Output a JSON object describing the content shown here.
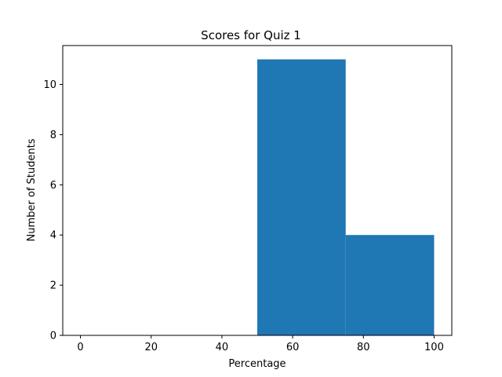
{
  "chart_data": {
    "type": "bar",
    "title": "Scores for Quiz 1",
    "xlabel": "Percentage",
    "ylabel": "Number of Students",
    "xlim": [
      -5,
      105
    ],
    "ylim": [
      0,
      11.55
    ],
    "x_ticks": [
      0,
      20,
      40,
      60,
      80,
      100
    ],
    "y_ticks": [
      0,
      2,
      4,
      6,
      8,
      10
    ],
    "grid": false,
    "bins": [
      {
        "start": 0,
        "end": 25,
        "count": 0
      },
      {
        "start": 25,
        "end": 50,
        "count": 0
      },
      {
        "start": 50,
        "end": 75,
        "count": 11
      },
      {
        "start": 75,
        "end": 100,
        "count": 4
      }
    ],
    "bar_color": "#1f77b4"
  }
}
